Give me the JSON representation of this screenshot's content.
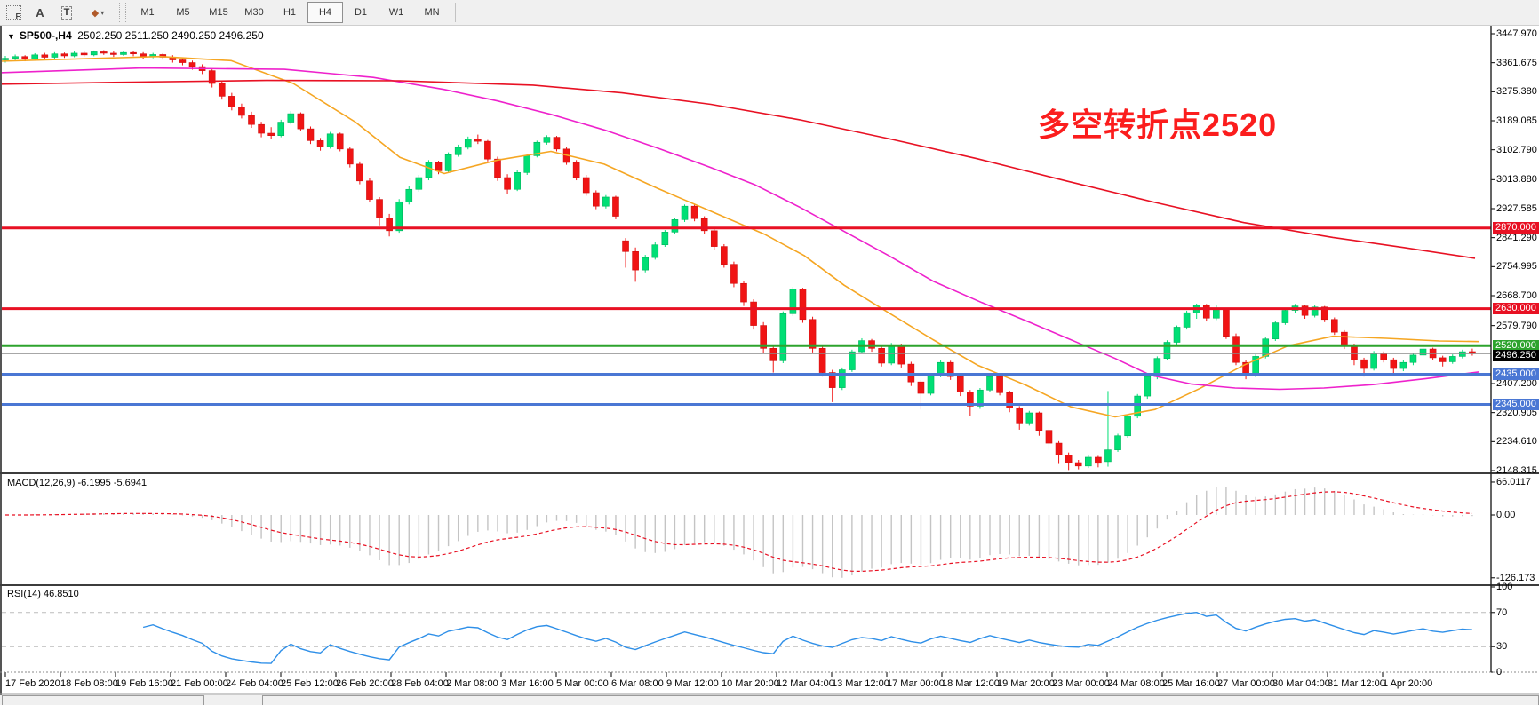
{
  "toolbar": {
    "tools": [
      {
        "name": "fibonacci-tool",
        "glyph": "F"
      },
      {
        "name": "text-tool",
        "glyph": "A"
      },
      {
        "name": "text-label-tool",
        "glyph": "T"
      },
      {
        "name": "arrows-tool",
        "glyph": "◆"
      }
    ],
    "timeframes": [
      "M1",
      "M5",
      "M15",
      "M30",
      "H1",
      "H4",
      "D1",
      "W1",
      "MN"
    ],
    "active_timeframe": "H4"
  },
  "chart": {
    "symbol_title": "SP500-,H4",
    "ohlc_text": "2502.250 2511.250 2490.250 2496.250",
    "annotation_text": "多空转折点2520",
    "annotation_color": "#fb1d1d"
  },
  "price_axis": {
    "ticks": [
      "3447.970",
      "3361.675",
      "3275.380",
      "3189.085",
      "3102.790",
      "3013.880",
      "2927.585",
      "2841.290",
      "2754.995",
      "2668.700",
      "2579.790",
      "2407.200",
      "2320.905",
      "2234.610",
      "2148.315"
    ]
  },
  "levels": [
    {
      "price": 2870.0,
      "label": "2870.000",
      "color": "#e81123",
      "width": 3
    },
    {
      "price": 2630.0,
      "label": "2630.000",
      "color": "#e81123",
      "width": 3
    },
    {
      "price": 2520.0,
      "label": "2520.000",
      "color": "#2da32d",
      "width": 3
    },
    {
      "price": 2435.0,
      "label": "2435.000",
      "color": "#4a77d4",
      "width": 3
    },
    {
      "price": 2345.0,
      "label": "2345.000",
      "color": "#4a77d4",
      "width": 3
    }
  ],
  "current_price": {
    "price": 2496.25,
    "label": "2496.250",
    "line_color": "#8a8a8a",
    "badge_color": "#000000"
  },
  "date_axis": {
    "labels": [
      "17 Feb 2020",
      "18 Feb 08:00",
      "19 Feb 16:00",
      "21 Feb 00:00",
      "24 Feb 04:00",
      "25 Feb 12:00",
      "26 Feb 20:00",
      "28 Feb 04:00",
      "2 Mar 08:00",
      "3 Mar 16:00",
      "5 Mar 00:00",
      "6 Mar 08:00",
      "9 Mar 12:00",
      "10 Mar 20:00",
      "12 Mar 04:00",
      "13 Mar 12:00",
      "17 Mar 00:00",
      "18 Mar 12:00",
      "19 Mar 20:00",
      "23 Mar 00:00",
      "24 Mar 08:00",
      "25 Mar 16:00",
      "27 Mar 00:00",
      "30 Mar 04:00",
      "31 Mar 12:00",
      "1 Apr 20:00"
    ]
  },
  "macd": {
    "label": "MACD(12,26,9)",
    "values_text": "-6.1995 -5.6941",
    "fast": 12,
    "slow": 26,
    "signal": 9,
    "axis": [
      {
        "v": 66.0117,
        "label": "66.0117"
      },
      {
        "v": 0,
        "label": "0.00"
      },
      {
        "v": -126.173,
        "label": "-126.173"
      }
    ],
    "hist_color": "#c4c4c4",
    "signal_color": "#e81123",
    "min_scale": -126.173
  },
  "rsi": {
    "label": "RSI(14)",
    "value_text": "46.8510",
    "period": 14,
    "axis": [
      {
        "v": 100,
        "label": "100"
      },
      {
        "v": 70,
        "label": "70"
      },
      {
        "v": 30,
        "label": "30"
      },
      {
        "v": 0,
        "label": "0"
      }
    ],
    "level_lines": [
      70,
      30
    ],
    "line_color": "#2e8fe8",
    "level_color": "#bcbcbc"
  },
  "chart_data": {
    "type": "candlestick",
    "symbol": "SP500-",
    "timeframe": "H4",
    "up_color": "#00df75",
    "up_edge": "#00b35c",
    "down_color": "#f01414",
    "down_edge": "#cf0f0f",
    "candles": [
      [
        3370,
        3382,
        3362,
        3375
      ],
      [
        3375,
        3386,
        3369,
        3380
      ],
      [
        3380,
        3384,
        3366,
        3372
      ],
      [
        3372,
        3390,
        3368,
        3385
      ],
      [
        3385,
        3391,
        3372,
        3378
      ],
      [
        3378,
        3393,
        3374,
        3388
      ],
      [
        3388,
        3392,
        3376,
        3382
      ],
      [
        3382,
        3395,
        3378,
        3390
      ],
      [
        3390,
        3396,
        3380,
        3385
      ],
      [
        3385,
        3398,
        3381,
        3394
      ],
      [
        3394,
        3399,
        3385,
        3390
      ],
      [
        3390,
        3395,
        3379,
        3386
      ],
      [
        3386,
        3397,
        3382,
        3392
      ],
      [
        3392,
        3396,
        3381,
        3388
      ],
      [
        3388,
        3393,
        3374,
        3380
      ],
      [
        3380,
        3391,
        3375,
        3386
      ],
      [
        3386,
        3390,
        3371,
        3378
      ],
      [
        3378,
        3384,
        3362,
        3370
      ],
      [
        3370,
        3377,
        3354,
        3362
      ],
      [
        3362,
        3368,
        3341,
        3350
      ],
      [
        3350,
        3357,
        3328,
        3338
      ],
      [
        3338,
        3342,
        3288,
        3300
      ],
      [
        3300,
        3308,
        3252,
        3262
      ],
      [
        3262,
        3272,
        3220,
        3230
      ],
      [
        3230,
        3240,
        3196,
        3205
      ],
      [
        3205,
        3216,
        3168,
        3178
      ],
      [
        3178,
        3186,
        3140,
        3152
      ],
      [
        3152,
        3170,
        3136,
        3145
      ],
      [
        3145,
        3192,
        3140,
        3185
      ],
      [
        3185,
        3218,
        3178,
        3210
      ],
      [
        3210,
        3214,
        3158,
        3165
      ],
      [
        3165,
        3172,
        3120,
        3130
      ],
      [
        3130,
        3138,
        3100,
        3112
      ],
      [
        3112,
        3156,
        3106,
        3150
      ],
      [
        3150,
        3154,
        3098,
        3105
      ],
      [
        3105,
        3112,
        3050,
        3060
      ],
      [
        3060,
        3068,
        3000,
        3010
      ],
      [
        3010,
        3018,
        2946,
        2955
      ],
      [
        2955,
        2962,
        2878,
        2900
      ],
      [
        2900,
        2912,
        2845,
        2862
      ],
      [
        2862,
        2956,
        2856,
        2948
      ],
      [
        2948,
        2994,
        2940,
        2985
      ],
      [
        2985,
        3028,
        2978,
        3020
      ],
      [
        3020,
        3072,
        3012,
        3065
      ],
      [
        3065,
        3070,
        3030,
        3040
      ],
      [
        3040,
        3095,
        3034,
        3088
      ],
      [
        3088,
        3118,
        3082,
        3110
      ],
      [
        3110,
        3142,
        3104,
        3135
      ],
      [
        3135,
        3148,
        3120,
        3128
      ],
      [
        3128,
        3132,
        3068,
        3075
      ],
      [
        3075,
        3082,
        3010,
        3020
      ],
      [
        3020,
        3030,
        2972,
        2985
      ],
      [
        2985,
        3042,
        2980,
        3035
      ],
      [
        3035,
        3090,
        3028,
        3085
      ],
      [
        3085,
        3130,
        3080,
        3125
      ],
      [
        3125,
        3146,
        3118,
        3140
      ],
      [
        3140,
        3144,
        3098,
        3105
      ],
      [
        3105,
        3112,
        3058,
        3065
      ],
      [
        3065,
        3072,
        3012,
        3020
      ],
      [
        3020,
        3028,
        2966,
        2975
      ],
      [
        2975,
        2982,
        2926,
        2935
      ],
      [
        2935,
        2968,
        2928,
        2962
      ],
      [
        2962,
        2966,
        2896,
        2905
      ],
      [
        2832,
        2840,
        2752,
        2800
      ],
      [
        2800,
        2812,
        2710,
        2745
      ],
      [
        2745,
        2790,
        2738,
        2782
      ],
      [
        2782,
        2828,
        2776,
        2820
      ],
      [
        2820,
        2864,
        2814,
        2858
      ],
      [
        2858,
        2900,
        2852,
        2895
      ],
      [
        2895,
        2940,
        2888,
        2935
      ],
      [
        2935,
        2940,
        2890,
        2898
      ],
      [
        2898,
        2905,
        2852,
        2862
      ],
      [
        2862,
        2870,
        2806,
        2815
      ],
      [
        2815,
        2822,
        2752,
        2762
      ],
      [
        2762,
        2770,
        2694,
        2705
      ],
      [
        2705,
        2712,
        2638,
        2650
      ],
      [
        2650,
        2658,
        2568,
        2580
      ],
      [
        2580,
        2590,
        2498,
        2512
      ],
      [
        2512,
        2520,
        2440,
        2475
      ],
      [
        2475,
        2622,
        2468,
        2615
      ],
      [
        2615,
        2695,
        2608,
        2688
      ],
      [
        2688,
        2692,
        2588,
        2598
      ],
      [
        2598,
        2606,
        2500,
        2512
      ],
      [
        2512,
        2518,
        2428,
        2440
      ],
      [
        2440,
        2448,
        2352,
        2395
      ],
      [
        2395,
        2455,
        2388,
        2448
      ],
      [
        2448,
        2508,
        2442,
        2502
      ],
      [
        2502,
        2542,
        2496,
        2535
      ],
      [
        2535,
        2540,
        2502,
        2512
      ],
      [
        2512,
        2518,
        2458,
        2468
      ],
      [
        2468,
        2528,
        2462,
        2522
      ],
      [
        2522,
        2526,
        2455,
        2465
      ],
      [
        2465,
        2472,
        2400,
        2412
      ],
      [
        2412,
        2418,
        2330,
        2378
      ],
      [
        2378,
        2438,
        2372,
        2432
      ],
      [
        2432,
        2476,
        2426,
        2470
      ],
      [
        2470,
        2475,
        2418,
        2428
      ],
      [
        2428,
        2434,
        2370,
        2382
      ],
      [
        2382,
        2388,
        2310,
        2340
      ],
      [
        2340,
        2394,
        2332,
        2388
      ],
      [
        2388,
        2434,
        2382,
        2428
      ],
      [
        2428,
        2432,
        2372,
        2380
      ],
      [
        2380,
        2386,
        2322,
        2335
      ],
      [
        2335,
        2340,
        2270,
        2290
      ],
      [
        2290,
        2326,
        2282,
        2320
      ],
      [
        2320,
        2324,
        2252,
        2268
      ],
      [
        2268,
        2274,
        2210,
        2230
      ],
      [
        2230,
        2236,
        2168,
        2195
      ],
      [
        2195,
        2202,
        2150,
        2172
      ],
      [
        2172,
        2180,
        2152,
        2162
      ],
      [
        2162,
        2196,
        2156,
        2188
      ],
      [
        2188,
        2192,
        2158,
        2170
      ],
      [
        2175,
        2385,
        2160,
        2210
      ],
      [
        2210,
        2258,
        2204,
        2252
      ],
      [
        2252,
        2316,
        2246,
        2310
      ],
      [
        2310,
        2376,
        2304,
        2370
      ],
      [
        2370,
        2434,
        2362,
        2428
      ],
      [
        2428,
        2488,
        2420,
        2482
      ],
      [
        2482,
        2536,
        2476,
        2530
      ],
      [
        2530,
        2580,
        2522,
        2575
      ],
      [
        2575,
        2624,
        2568,
        2618
      ],
      [
        2618,
        2645,
        2600,
        2640
      ],
      [
        2640,
        2644,
        2592,
        2602
      ],
      [
        2602,
        2641,
        2596,
        2628
      ],
      [
        2628,
        2632,
        2540,
        2548
      ],
      [
        2548,
        2556,
        2462,
        2470
      ],
      [
        2470,
        2478,
        2420,
        2432
      ],
      [
        2432,
        2494,
        2426,
        2488
      ],
      [
        2488,
        2546,
        2482,
        2540
      ],
      [
        2540,
        2594,
        2534,
        2588
      ],
      [
        2588,
        2630,
        2582,
        2625
      ],
      [
        2625,
        2644,
        2618,
        2638
      ],
      [
        2638,
        2642,
        2600,
        2610
      ],
      [
        2610,
        2640,
        2604,
        2635
      ],
      [
        2635,
        2638,
        2590,
        2598
      ],
      [
        2598,
        2604,
        2552,
        2560
      ],
      [
        2560,
        2566,
        2510,
        2520
      ],
      [
        2520,
        2526,
        2462,
        2478
      ],
      [
        2478,
        2484,
        2428,
        2452
      ],
      [
        2452,
        2504,
        2446,
        2498
      ],
      [
        2498,
        2503,
        2470,
        2478
      ],
      [
        2478,
        2484,
        2430,
        2452
      ],
      [
        2452,
        2476,
        2444,
        2470
      ],
      [
        2470,
        2497,
        2462,
        2492
      ],
      [
        2492,
        2516,
        2486,
        2510
      ],
      [
        2510,
        2514,
        2476,
        2484
      ],
      [
        2484,
        2490,
        2458,
        2472
      ],
      [
        2472,
        2494,
        2466,
        2488
      ],
      [
        2488,
        2508,
        2482,
        2502
      ],
      [
        2502.25,
        2511.25,
        2490.25,
        2496.25
      ]
    ],
    "overlays": [
      {
        "name": "ma-fast-orange",
        "color": "#f5a623",
        "points": [
          [
            0,
            3366
          ],
          [
            180,
            3380
          ],
          [
            260,
            3368
          ],
          [
            330,
            3300
          ],
          [
            400,
            3185
          ],
          [
            450,
            3080
          ],
          [
            500,
            3032
          ],
          [
            560,
            3072
          ],
          [
            620,
            3098
          ],
          [
            680,
            3060
          ],
          [
            740,
            2988
          ],
          [
            800,
            2920
          ],
          [
            860,
            2852
          ],
          [
            905,
            2788
          ],
          [
            950,
            2700
          ],
          [
            1000,
            2618
          ],
          [
            1050,
            2538
          ],
          [
            1100,
            2462
          ],
          [
            1155,
            2402
          ],
          [
            1205,
            2338
          ],
          [
            1255,
            2308
          ],
          [
            1300,
            2330
          ],
          [
            1350,
            2392
          ],
          [
            1400,
            2462
          ],
          [
            1450,
            2520
          ],
          [
            1500,
            2548
          ],
          [
            1560,
            2542
          ],
          [
            1620,
            2534
          ],
          [
            1665,
            2532
          ]
        ]
      },
      {
        "name": "ma-mid-magenta",
        "color": "#ee22cc",
        "points": [
          [
            0,
            3332
          ],
          [
            160,
            3346
          ],
          [
            320,
            3342
          ],
          [
            420,
            3318
          ],
          [
            500,
            3282
          ],
          [
            560,
            3248
          ],
          [
            620,
            3208
          ],
          [
            680,
            3162
          ],
          [
            740,
            3108
          ],
          [
            800,
            3050
          ],
          [
            850,
            2998
          ],
          [
            900,
            2932
          ],
          [
            950,
            2860
          ],
          [
            1000,
            2788
          ],
          [
            1050,
            2712
          ],
          [
            1105,
            2648
          ],
          [
            1160,
            2588
          ],
          [
            1210,
            2532
          ],
          [
            1255,
            2482
          ],
          [
            1295,
            2432
          ],
          [
            1340,
            2406
          ],
          [
            1390,
            2394
          ],
          [
            1440,
            2390
          ],
          [
            1490,
            2394
          ],
          [
            1545,
            2404
          ],
          [
            1605,
            2422
          ],
          [
            1665,
            2442
          ]
        ]
      },
      {
        "name": "ma-slow-red",
        "color": "#e81123",
        "points": [
          [
            0,
            3298
          ],
          [
            150,
            3304
          ],
          [
            300,
            3309
          ],
          [
            450,
            3308
          ],
          [
            600,
            3295
          ],
          [
            700,
            3272
          ],
          [
            800,
            3238
          ],
          [
            900,
            3192
          ],
          [
            1000,
            3136
          ],
          [
            1100,
            3076
          ],
          [
            1200,
            3010
          ],
          [
            1300,
            2946
          ],
          [
            1400,
            2886
          ],
          [
            1500,
            2842
          ],
          [
            1580,
            2812
          ],
          [
            1660,
            2780
          ]
        ]
      }
    ]
  }
}
